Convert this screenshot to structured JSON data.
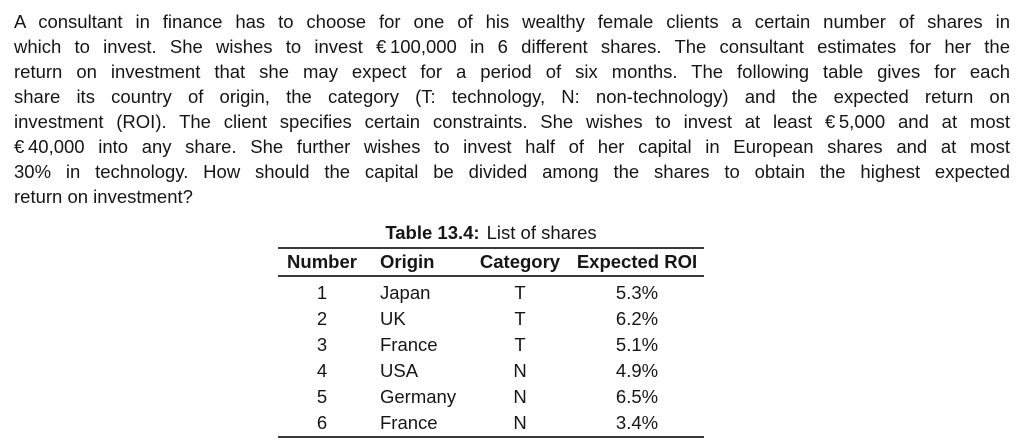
{
  "paragraph": {
    "lines": [
      "A consultant in finance has to choose for one of his wealthy female clients a certain number of shares in",
      "which to invest. She wishes to invest € 100,000 in 6 different shares. The consultant estimates for her the",
      "return on investment that she may expect for a period of six months. The following table gives for each",
      "share its country of origin, the category (T: technology, N: non-technology) and the expected return on",
      "investment (ROI). The client specifies certain constraints. She wishes to invest at least € 5,000 and at most",
      "€ 40,000 into any share. She further wishes to invest half of her capital in European shares and at most",
      "30% in technology. How should the capital be divided among the shares to obtain the highest expected",
      "return on investment?"
    ]
  },
  "table": {
    "caption_label": "Table 13.4:",
    "caption_title": "List of shares",
    "columns": [
      "Number",
      "Origin",
      "Category",
      "Expected ROI"
    ],
    "rows": [
      {
        "number": "1",
        "origin": "Japan",
        "category": "T",
        "roi": "5.3%"
      },
      {
        "number": "2",
        "origin": "UK",
        "category": "T",
        "roi": "6.2%"
      },
      {
        "number": "3",
        "origin": "France",
        "category": "T",
        "roi": "5.1%"
      },
      {
        "number": "4",
        "origin": "USA",
        "category": "N",
        "roi": "4.9%"
      },
      {
        "number": "5",
        "origin": "Germany",
        "category": "N",
        "roi": "6.5%"
      },
      {
        "number": "6",
        "origin": "France",
        "category": "N",
        "roi": "3.4%"
      }
    ]
  },
  "colors": {
    "text": "#161616",
    "rule": "#3a3a3a",
    "background": "#ffffff"
  }
}
